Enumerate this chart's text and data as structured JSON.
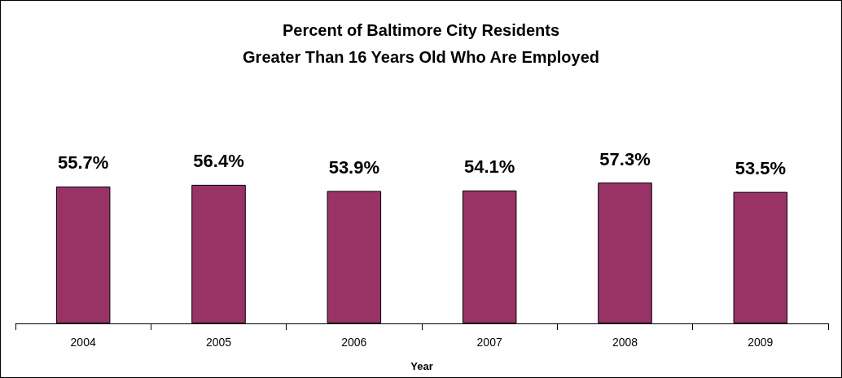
{
  "chart_data": {
    "type": "bar",
    "title": "Percent of Baltimore City Residents\nGreater Than 16 Years Old Who Are Employed",
    "xlabel": "Year",
    "categories": [
      "2004",
      "2005",
      "2006",
      "2007",
      "2008",
      "2009"
    ],
    "series": [
      {
        "color": "#993366",
        "values": [
          55.7,
          56.4,
          53.9,
          54.1,
          57.3,
          53.5
        ],
        "value_labels": [
          "55.7%",
          "56.4%",
          "53.9%",
          "54.1%",
          "57.3%",
          "53.5%"
        ]
      }
    ],
    "tick_labels": "x",
    "grid": false
  }
}
